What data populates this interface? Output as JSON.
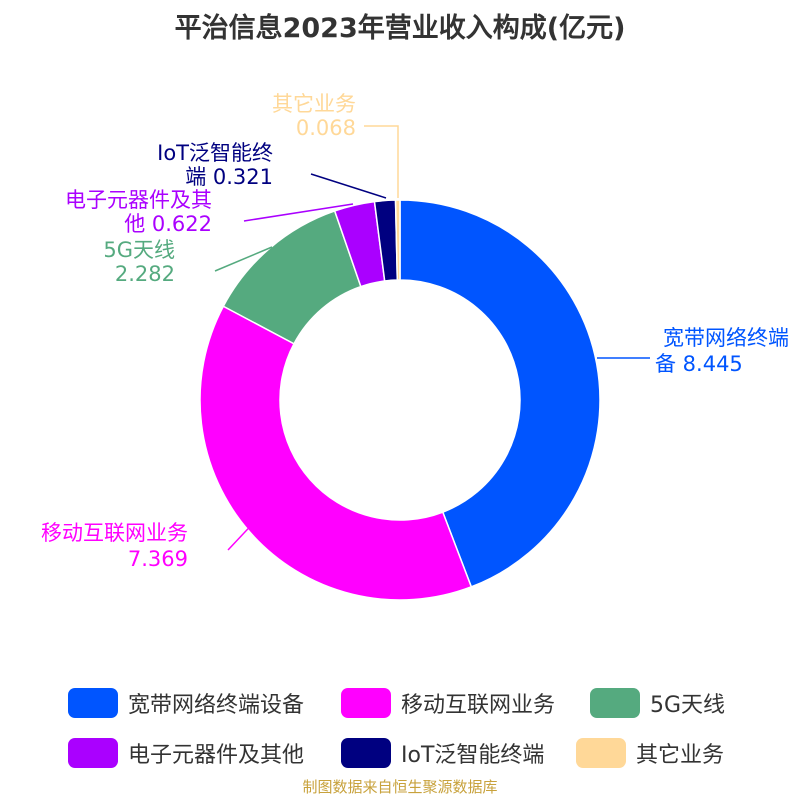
{
  "title": "平治信息2023年营业收入构成(亿元)",
  "source": "制图数据来自恒生聚源数据库",
  "chart_data": {
    "type": "pie",
    "donut": true,
    "legend_position": "bottom",
    "categories": [
      "宽带网络终端设备",
      "移动互联网业务",
      "5G天线",
      "电子元器件及其他",
      "IoT泛智能终端",
      "其它业务"
    ],
    "values": [
      8.445,
      7.369,
      2.282,
      0.622,
      0.321,
      0.068
    ],
    "value_labels": [
      "8.445",
      "7.369",
      "2.282",
      "0.622",
      "0.321",
      "0.068"
    ],
    "label_lines": [
      [
        "宽带网络终端",
        "备 8.445"
      ],
      [
        "移动互联网业务",
        "7.369"
      ],
      [
        "5G天线",
        "2.282"
      ],
      [
        "电子元器件及其",
        "他 0.622"
      ],
      [
        "IoT泛智能终",
        "端 0.321"
      ],
      [
        "其它业务",
        "0.068"
      ]
    ],
    "colors": [
      "#0055ff",
      "#ff00ff",
      "#55aa7f",
      "#aa00ff",
      "#000080",
      "#ffd898"
    ]
  },
  "legend": {
    "items": [
      "宽带网络终端设备",
      "移动互联网业务",
      "5G天线",
      "电子元器件及其他",
      "IoT泛智能终端",
      "其它业务"
    ]
  }
}
